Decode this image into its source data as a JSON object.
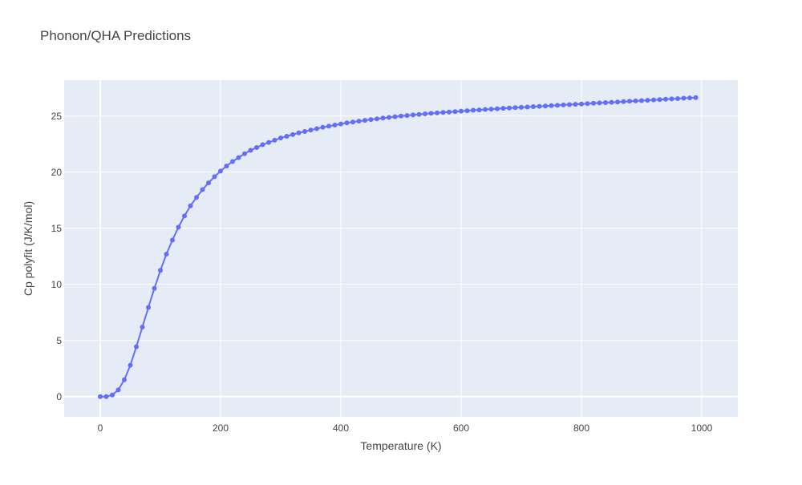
{
  "chart_data": {
    "type": "line",
    "title": "Phonon/QHA Predictions",
    "xlabel": "Temperature (K)",
    "ylabel": "Cp polyfit (J/K/mol)",
    "xlim": [
      -60,
      1060
    ],
    "ylim": [
      -1.8,
      28.2
    ],
    "xticks": [
      0,
      200,
      400,
      600,
      800,
      1000
    ],
    "yticks": [
      0,
      5,
      10,
      15,
      20,
      25
    ],
    "grid": true,
    "colors": {
      "series": "#636efa",
      "plot_bg": "#e5ecf6",
      "grid": "#ffffff"
    },
    "series": [
      {
        "mode": "lines+markers",
        "x": [
          0,
          10,
          20,
          30,
          40,
          50,
          60,
          70,
          80,
          90,
          100,
          110,
          120,
          130,
          140,
          150,
          160,
          170,
          180,
          190,
          200,
          210,
          220,
          230,
          240,
          250,
          260,
          270,
          280,
          290,
          300,
          310,
          320,
          330,
          340,
          350,
          360,
          370,
          380,
          390,
          400,
          410,
          420,
          430,
          440,
          450,
          460,
          470,
          480,
          490,
          500,
          510,
          520,
          530,
          540,
          550,
          560,
          570,
          580,
          590,
          600,
          610,
          620,
          630,
          640,
          650,
          660,
          670,
          680,
          690,
          700,
          710,
          720,
          730,
          740,
          750,
          760,
          770,
          780,
          790,
          800,
          810,
          820,
          830,
          840,
          850,
          860,
          870,
          880,
          890,
          900,
          910,
          920,
          930,
          940,
          950,
          960,
          970,
          980,
          990
        ],
        "y": [
          0.0,
          0.0,
          0.15,
          0.6,
          1.5,
          2.8,
          4.45,
          6.2,
          7.95,
          9.65,
          11.25,
          12.7,
          13.95,
          15.1,
          16.1,
          17.0,
          17.75,
          18.45,
          19.05,
          19.6,
          20.1,
          20.55,
          20.95,
          21.3,
          21.65,
          21.95,
          22.2,
          22.45,
          22.65,
          22.85,
          23.05,
          23.2,
          23.35,
          23.5,
          23.63,
          23.76,
          23.88,
          24.0,
          24.1,
          24.2,
          24.3,
          24.39,
          24.47,
          24.55,
          24.62,
          24.69,
          24.76,
          24.82,
          24.88,
          24.94,
          25.0,
          25.05,
          25.1,
          25.15,
          25.2,
          25.24,
          25.28,
          25.32,
          25.36,
          25.4,
          25.44,
          25.48,
          25.52,
          25.55,
          25.59,
          25.62,
          25.66,
          25.69,
          25.72,
          25.75,
          25.78,
          25.81,
          25.84,
          25.87,
          25.9,
          25.93,
          25.96,
          25.99,
          26.02,
          26.05,
          26.08,
          26.11,
          26.14,
          26.17,
          26.2,
          26.23,
          26.26,
          26.29,
          26.32,
          26.35,
          26.38,
          26.41,
          26.44,
          26.47,
          26.5,
          26.53,
          26.56,
          26.59,
          26.62,
          26.65
        ]
      }
    ]
  }
}
